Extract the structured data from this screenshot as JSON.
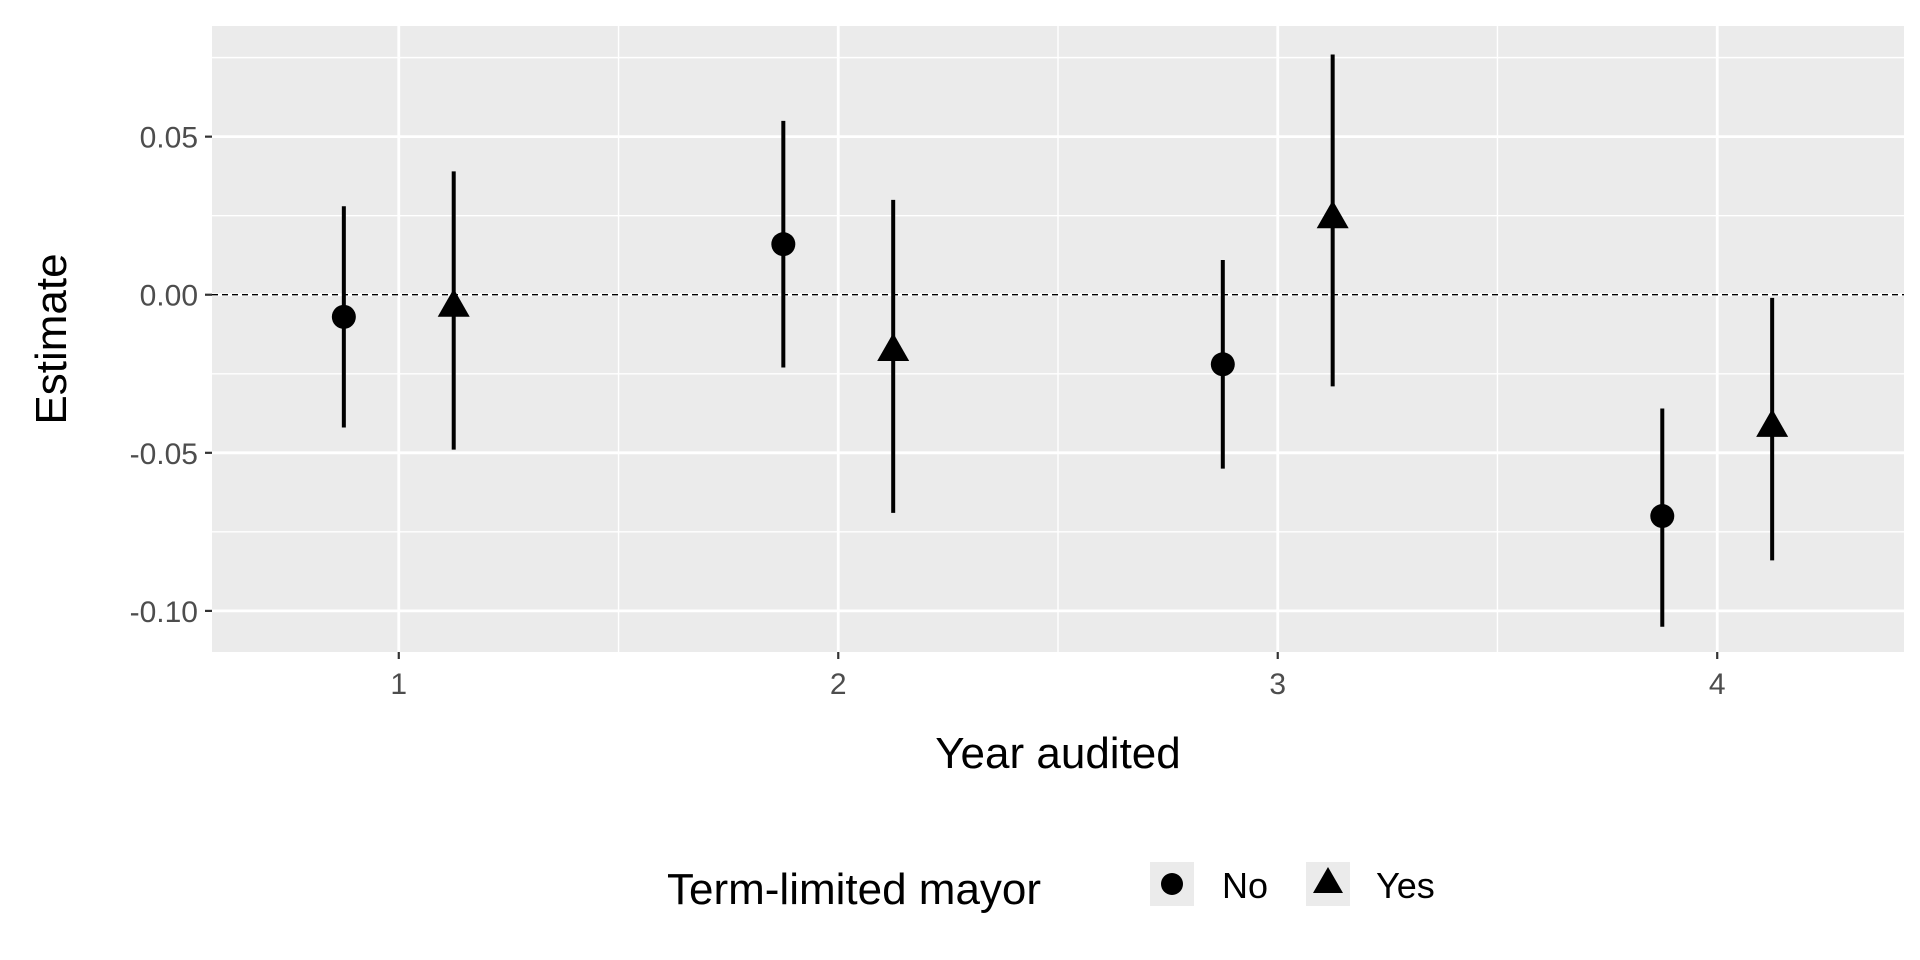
{
  "chart_data": {
    "type": "scatter",
    "xlabel": "Year audited",
    "ylabel": "Estimate",
    "categories": [
      "1",
      "2",
      "3",
      "4"
    ],
    "ylim": [
      -0.113,
      0.085
    ],
    "yticks": [
      "0.05",
      "0.00",
      "-0.05",
      "-0.10"
    ],
    "ytick_values": [
      0.05,
      0.0,
      -0.05,
      -0.1
    ],
    "reference_line": 0.0,
    "grid": true,
    "legend_position": "bottom",
    "legend_title": "Term-limited mayor",
    "series": [
      {
        "name": "No",
        "marker": "circle",
        "dodge": -0.125,
        "values": [
          -0.007,
          0.016,
          -0.022,
          -0.07
        ],
        "lower": [
          -0.042,
          -0.023,
          -0.055,
          -0.105
        ],
        "upper": [
          0.028,
          0.055,
          0.011,
          -0.036
        ]
      },
      {
        "name": "Yes",
        "marker": "triangle",
        "dodge": 0.125,
        "values": [
          -0.004,
          -0.018,
          0.024,
          -0.042
        ],
        "lower": [
          -0.049,
          -0.069,
          -0.029,
          -0.084
        ],
        "upper": [
          0.039,
          0.03,
          0.076,
          -0.001
        ]
      }
    ],
    "colors": {
      "panel": "#ebebeb",
      "grid": "#ffffff",
      "marks": "#000000",
      "tick_text": "#4d4d4d"
    }
  }
}
